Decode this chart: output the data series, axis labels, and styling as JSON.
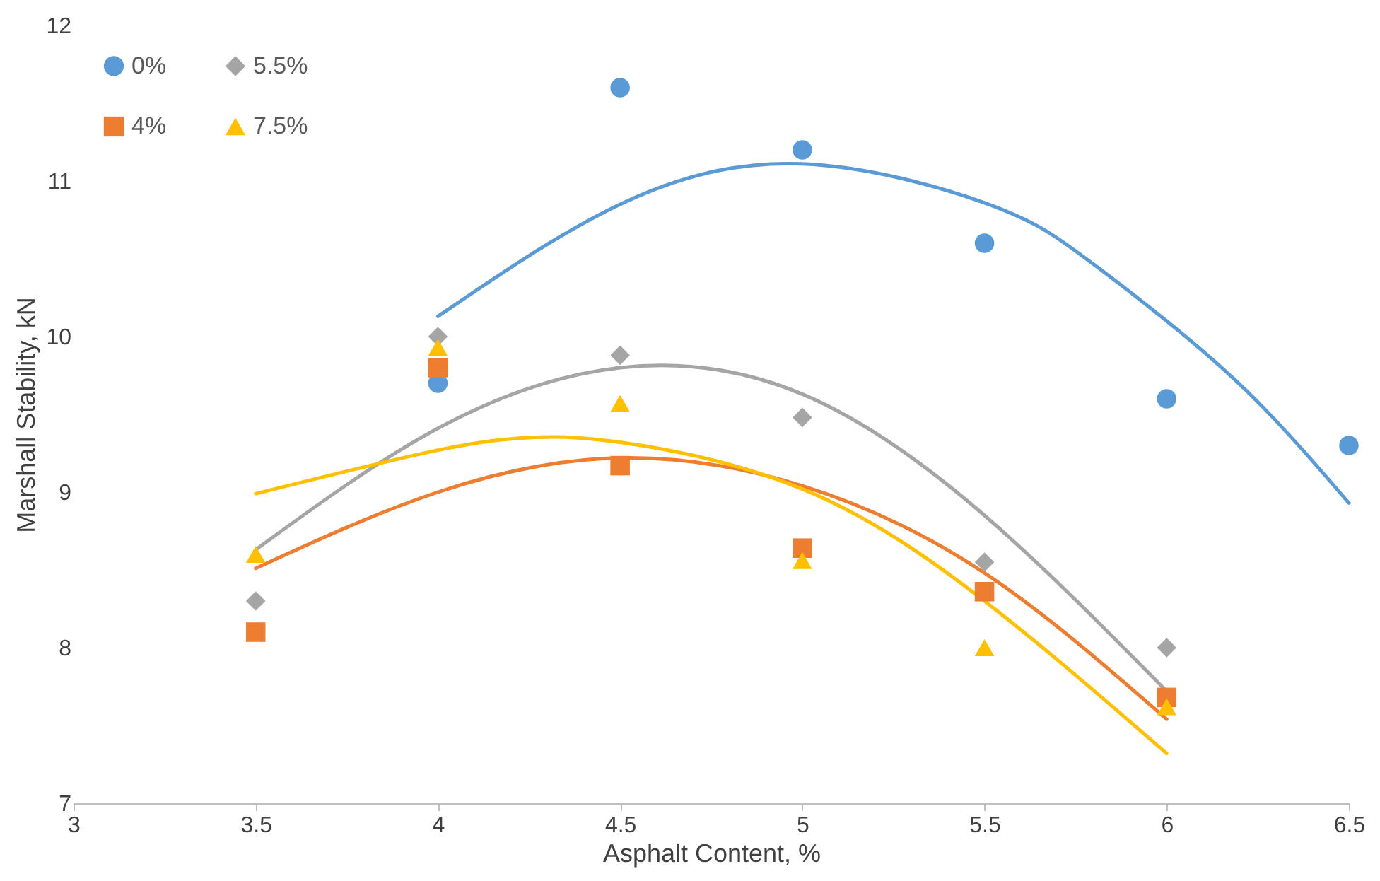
{
  "chart_data": {
    "type": "scatter",
    "xlabel": "Asphalt Content, %",
    "ylabel": "Marshall Stability, kN",
    "xlim": [
      3,
      6.5
    ],
    "xticks": [
      3,
      3.5,
      4,
      4.5,
      5,
      5.5,
      6,
      6.5
    ],
    "ylim": [
      7,
      12
    ],
    "yticks": [
      7,
      8,
      9,
      10,
      11,
      12
    ],
    "grid": false,
    "legend": "top left",
    "series": [
      {
        "name": "0%",
        "color": "#5b9bd5",
        "marker": "circle",
        "x": [
          4,
          4.5,
          5,
          5.5,
          6,
          6.5
        ],
        "values": [
          9.7,
          11.6,
          11.2,
          10.6,
          9.6,
          9.3
        ]
      },
      {
        "name": "4%",
        "color": "#ed7d31",
        "marker": "square",
        "x": [
          3.5,
          4,
          4.5,
          5,
          5.5,
          6
        ],
        "values": [
          8.1,
          9.8,
          9.17,
          8.64,
          8.36,
          7.68
        ]
      },
      {
        "name": "5.5%",
        "color": "#a5a5a5",
        "marker": "diamond",
        "x": [
          3.5,
          4,
          4.5,
          5,
          5.5,
          6
        ],
        "values": [
          8.3,
          10.0,
          9.88,
          9.48,
          8.55,
          8.0
        ]
      },
      {
        "name": "7.5%",
        "color": "#ffc000",
        "marker": "triangle",
        "x": [
          3.5,
          4,
          4.5,
          5,
          5.5,
          6
        ],
        "values": [
          8.6,
          9.93,
          9.57,
          8.56,
          8.0,
          7.62
        ]
      },
      {
        "type": "line",
        "color": "#5b9bd5",
        "x": [
          4,
          4.5,
          5,
          5.5,
          5.75,
          6,
          6.25,
          6.5
        ],
        "values": [
          10.13,
          10.85,
          11.11,
          10.86,
          10.55,
          10.1,
          9.58,
          8.93
        ]
      },
      {
        "type": "line",
        "color": "#ed7d31",
        "x": [
          3.5,
          4,
          4.5,
          5,
          5.5,
          6
        ],
        "values": [
          8.51,
          9.0,
          9.22,
          9.04,
          8.48,
          7.54
        ]
      },
      {
        "type": "line",
        "color": "#a5a5a5",
        "x": [
          3.5,
          4,
          4.5,
          5,
          5.5,
          6
        ],
        "values": [
          8.63,
          9.41,
          9.8,
          9.63,
          8.85,
          7.72
        ]
      },
      {
        "type": "line",
        "color": "#ffc000",
        "x": [
          3.5,
          4,
          4.25,
          4.5,
          5,
          5.5,
          6
        ],
        "values": [
          8.99,
          9.27,
          9.35,
          9.32,
          9.02,
          8.3,
          7.32
        ]
      }
    ]
  }
}
